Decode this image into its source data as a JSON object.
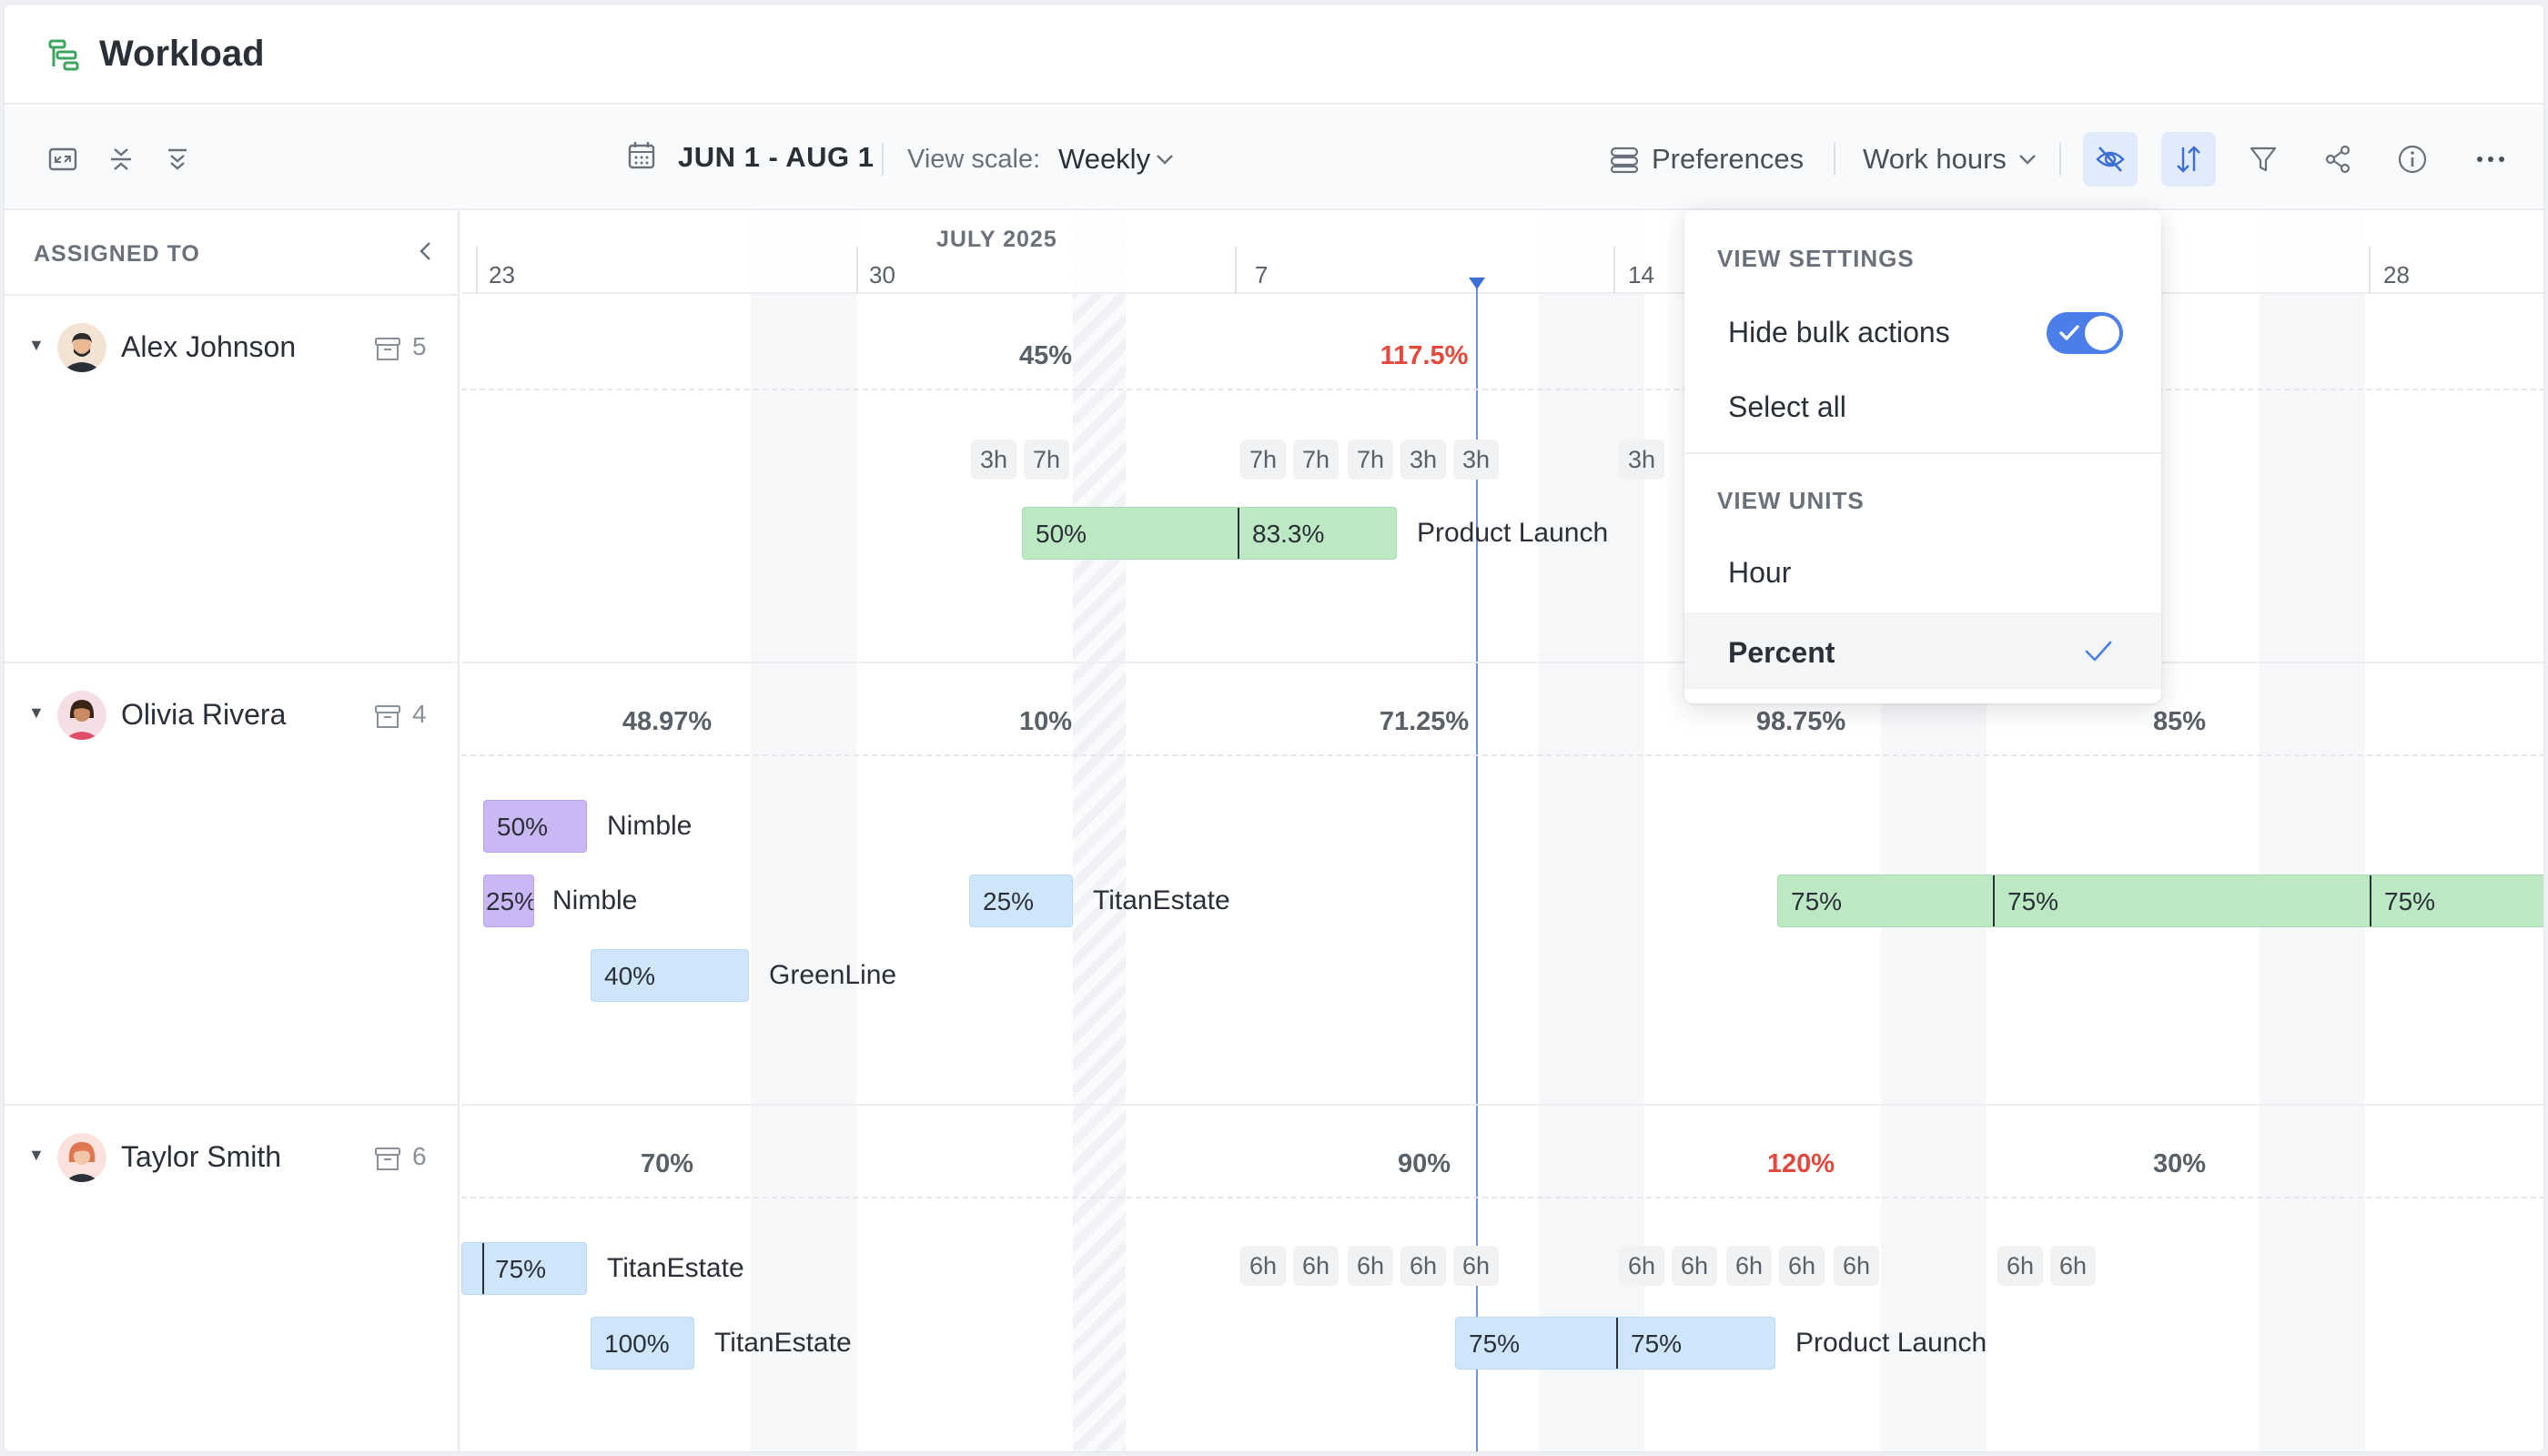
{
  "app": {
    "title": "Workload"
  },
  "toolbar": {
    "date_range": "JUN 1 - AUG 1",
    "view_scale_label": "View scale:",
    "view_scale_value": "Weekly",
    "preferences_label": "Preferences",
    "work_hours_label": "Work hours"
  },
  "sidebar": {
    "header": "ASSIGNED TO",
    "people": [
      {
        "name": "Alex Johnson",
        "count": "5"
      },
      {
        "name": "Olivia Rivera",
        "count": "4"
      },
      {
        "name": "Taylor Smith",
        "count": "6"
      }
    ]
  },
  "timeline": {
    "month": "JULY 2025",
    "weeks": [
      "23",
      "30",
      "7",
      "14",
      "28"
    ]
  },
  "rows": {
    "alex": {
      "totals": [
        "45%",
        "117.5%"
      ],
      "hours": [
        "3h",
        "7h",
        "7h",
        "7h",
        "7h",
        "3h",
        "3h",
        "3h"
      ],
      "bar1": {
        "seg1": "50%",
        "seg2": "83.3%",
        "project": "Product Launch"
      }
    },
    "olivia": {
      "totals": [
        "48.97%",
        "10%",
        "71.25%",
        "98.75%",
        "85%"
      ],
      "bars": [
        {
          "label": "50%",
          "project": "Nimble"
        },
        {
          "label": "25%",
          "project": "Nimble"
        },
        {
          "label": "25%",
          "project": "TitanEstate"
        },
        {
          "label": "40%",
          "project": "GreenLine"
        }
      ],
      "green_bar": {
        "seg1": "75%",
        "seg2": "75%",
        "seg3": "75%"
      }
    },
    "taylor": {
      "totals": [
        "70%",
        "90%",
        "120%",
        "30%"
      ],
      "hours": [
        "6h",
        "6h",
        "6h",
        "6h",
        "6h",
        "6h",
        "6h",
        "6h",
        "6h",
        "6h",
        "6h",
        "6h"
      ],
      "bars": [
        {
          "label": "75%",
          "project": "TitanEstate"
        },
        {
          "label": "100%",
          "project": "TitanEstate"
        },
        {
          "seg1": "75%",
          "seg2": "75%",
          "project": "Product Launch"
        }
      ]
    }
  },
  "dropdown": {
    "view_settings_header": "VIEW SETTINGS",
    "hide_bulk_actions": "Hide bulk actions",
    "hide_bulk_actions_on": true,
    "select_all": "Select all",
    "view_units_header": "VIEW UNITS",
    "unit_hour": "Hour",
    "unit_percent": "Percent",
    "selected_unit": "Percent"
  },
  "colors": {
    "accent": "#4b7ee8",
    "over_allocated": "#e5473d",
    "bar_green": "#bde8c4",
    "bar_purple": "#cab8f5",
    "bar_blue": "#cfe6fa"
  }
}
